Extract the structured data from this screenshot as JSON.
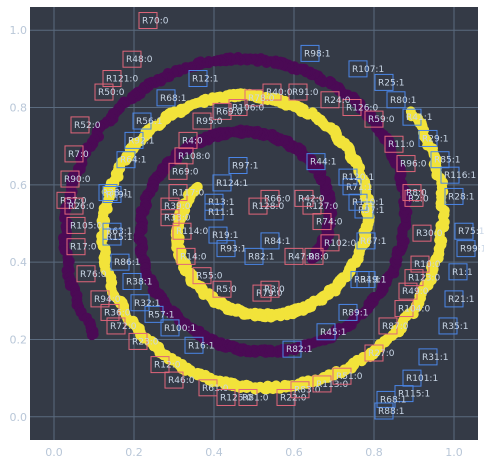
{
  "chart_data": {
    "type": "scatter",
    "title": "",
    "xlabel": "",
    "ylabel": "",
    "xlim": [
      -0.06,
      1.06
    ],
    "ylim": [
      -0.06,
      1.06
    ],
    "xticks": [
      0.0,
      0.2,
      0.4,
      0.6,
      0.8,
      1.0
    ],
    "yticks": [
      0.0,
      0.2,
      0.4,
      0.6,
      0.8,
      1.0
    ],
    "xtick_labels": [
      "0.0",
      "0.2",
      "0.4",
      "0.6",
      "0.8",
      "1.0"
    ],
    "ytick_labels": [
      "0.0",
      "0.2",
      "0.4",
      "0.6",
      "0.8",
      "1.0"
    ],
    "grid": true,
    "legend": false,
    "colors": {
      "background": "#343a46",
      "class0": "#4b0a55",
      "class1": "#f2e33a",
      "box_class0": "#e0657a",
      "box_class1": "#4a86e8"
    },
    "series": [
      {
        "marker_class": 0,
        "color": "#4b0a55",
        "spiral": {
          "t_start": 0.35,
          "t_end": 1.0,
          "phase": 0.0,
          "center": [
            0.5,
            0.5
          ],
          "max_radius": 0.49,
          "turns": 2.6
        }
      },
      {
        "marker_class": 1,
        "color": "#f2e33a",
        "spiral": {
          "t_start": 0.35,
          "t_end": 1.0,
          "phase": 3.14159,
          "center": [
            0.5,
            0.5
          ],
          "max_radius": 0.49,
          "turns": 2.6
        }
      }
    ],
    "annotations": [
      {
        "text": "R70:0",
        "x": 0.235,
        "y": 1.025,
        "cls": 0
      },
      {
        "text": "R48:0",
        "x": 0.195,
        "y": 0.925,
        "cls": 0
      },
      {
        "text": "R121:0",
        "x": 0.145,
        "y": 0.875,
        "cls": 0
      },
      {
        "text": "R50:0",
        "x": 0.125,
        "y": 0.84,
        "cls": 0
      },
      {
        "text": "R52:0",
        "x": 0.065,
        "y": 0.755,
        "cls": 0
      },
      {
        "text": "R7:0",
        "x": 0.05,
        "y": 0.68,
        "cls": 0
      },
      {
        "text": "R90:0",
        "x": 0.04,
        "y": 0.615,
        "cls": 0
      },
      {
        "text": "R57:0",
        "x": 0.03,
        "y": 0.56,
        "cls": 0
      },
      {
        "text": "R26:0",
        "x": 0.05,
        "y": 0.545,
        "cls": 0
      },
      {
        "text": "R105:0",
        "x": 0.055,
        "y": 0.495,
        "cls": 0
      },
      {
        "text": "R17:0",
        "x": 0.055,
        "y": 0.44,
        "cls": 0
      },
      {
        "text": "R76:0",
        "x": 0.08,
        "y": 0.37,
        "cls": 0
      },
      {
        "text": "R94:0",
        "x": 0.115,
        "y": 0.305,
        "cls": 0
      },
      {
        "text": "R36:0",
        "x": 0.14,
        "y": 0.27,
        "cls": 0
      },
      {
        "text": "R72:0",
        "x": 0.155,
        "y": 0.235,
        "cls": 0
      },
      {
        "text": "R23:0",
        "x": 0.21,
        "y": 0.195,
        "cls": 0
      },
      {
        "text": "R12:0",
        "x": 0.265,
        "y": 0.135,
        "cls": 0
      },
      {
        "text": "R46:0",
        "x": 0.3,
        "y": 0.095,
        "cls": 0
      },
      {
        "text": "R61:0",
        "x": 0.385,
        "y": 0.075,
        "cls": 0
      },
      {
        "text": "R125:0",
        "x": 0.43,
        "y": 0.05,
        "cls": 0
      },
      {
        "text": "R81:0",
        "x": 0.485,
        "y": 0.05,
        "cls": 0
      },
      {
        "text": "R22:0",
        "x": 0.58,
        "y": 0.05,
        "cls": 0
      },
      {
        "text": "R83:0",
        "x": 0.615,
        "y": 0.07,
        "cls": 0
      },
      {
        "text": "R113:0",
        "x": 0.67,
        "y": 0.085,
        "cls": 0
      },
      {
        "text": "R51:0",
        "x": 0.72,
        "y": 0.105,
        "cls": 0
      },
      {
        "text": "R27:0",
        "x": 0.8,
        "y": 0.165,
        "cls": 0
      },
      {
        "text": "R87:0",
        "x": 0.835,
        "y": 0.235,
        "cls": 0
      },
      {
        "text": "R104:0",
        "x": 0.875,
        "y": 0.28,
        "cls": 0
      },
      {
        "text": "R49:0",
        "x": 0.885,
        "y": 0.325,
        "cls": 0
      },
      {
        "text": "R123:0",
        "x": 0.9,
        "y": 0.36,
        "cls": 0
      },
      {
        "text": "R10:0",
        "x": 0.915,
        "y": 0.395,
        "cls": 0
      },
      {
        "text": "R30:0",
        "x": 0.92,
        "y": 0.475,
        "cls": 0
      },
      {
        "text": "R2:0",
        "x": 0.9,
        "y": 0.565,
        "cls": 0
      },
      {
        "text": "R8:0",
        "x": 0.895,
        "y": 0.58,
        "cls": 0
      },
      {
        "text": "R96:0",
        "x": 0.88,
        "y": 0.655,
        "cls": 0
      },
      {
        "text": "R11:0",
        "x": 0.85,
        "y": 0.705,
        "cls": 0
      },
      {
        "text": "R59:0",
        "x": 0.8,
        "y": 0.77,
        "cls": 0
      },
      {
        "text": "R126:0",
        "x": 0.745,
        "y": 0.8,
        "cls": 0
      },
      {
        "text": "R24:0",
        "x": 0.69,
        "y": 0.82,
        "cls": 0
      },
      {
        "text": "R91:0",
        "x": 0.61,
        "y": 0.84,
        "cls": 0
      },
      {
        "text": "R40:0",
        "x": 0.545,
        "y": 0.84,
        "cls": 0
      },
      {
        "text": "R78:0",
        "x": 0.5,
        "y": 0.825,
        "cls": 0
      },
      {
        "text": "R106:0",
        "x": 0.46,
        "y": 0.8,
        "cls": 0
      },
      {
        "text": "R69:0",
        "x": 0.42,
        "y": 0.79,
        "cls": 0
      },
      {
        "text": "R95:0",
        "x": 0.37,
        "y": 0.765,
        "cls": 0
      },
      {
        "text": "R4:0",
        "x": 0.335,
        "y": 0.715,
        "cls": 0
      },
      {
        "text": "R108:0",
        "x": 0.325,
        "y": 0.675,
        "cls": 0
      },
      {
        "text": "R69:0",
        "x": 0.31,
        "y": 0.635,
        "cls": 0
      },
      {
        "text": "R117:0",
        "x": 0.31,
        "y": 0.58,
        "cls": 0
      },
      {
        "text": "R39:0",
        "x": 0.29,
        "y": 0.545,
        "cls": 0
      },
      {
        "text": "R33:0",
        "x": 0.29,
        "y": 0.515,
        "cls": 0
      },
      {
        "text": "R114:0",
        "x": 0.32,
        "y": 0.48,
        "cls": 0
      },
      {
        "text": "R14:0",
        "x": 0.33,
        "y": 0.415,
        "cls": 0
      },
      {
        "text": "R55:0",
        "x": 0.37,
        "y": 0.365,
        "cls": 0
      },
      {
        "text": "R5:0",
        "x": 0.42,
        "y": 0.33,
        "cls": 0
      },
      {
        "text": "R79:0",
        "x": 0.52,
        "y": 0.32,
        "cls": 0
      },
      {
        "text": "R3:0",
        "x": 0.54,
        "y": 0.33,
        "cls": 0
      },
      {
        "text": "R47:0",
        "x": 0.6,
        "y": 0.415,
        "cls": 0
      },
      {
        "text": "R8:0",
        "x": 0.65,
        "y": 0.415,
        "cls": 0
      },
      {
        "text": "R102:0",
        "x": 0.69,
        "y": 0.45,
        "cls": 0
      },
      {
        "text": "R74:0",
        "x": 0.67,
        "y": 0.505,
        "cls": 0
      },
      {
        "text": "R127:0",
        "x": 0.645,
        "y": 0.545,
        "cls": 0
      },
      {
        "text": "R42:0",
        "x": 0.625,
        "y": 0.565,
        "cls": 0
      },
      {
        "text": "R66:0",
        "x": 0.54,
        "y": 0.565,
        "cls": 0
      },
      {
        "text": "R128:0",
        "x": 0.51,
        "y": 0.545,
        "cls": 0
      },
      {
        "text": "R38:1",
        "x": 0.135,
        "y": 0.58,
        "cls": 1
      },
      {
        "text": "R19:1",
        "x": 0.145,
        "y": 0.575,
        "cls": 1
      },
      {
        "text": "R63:1",
        "x": 0.145,
        "y": 0.48,
        "cls": 1
      },
      {
        "text": "R15:1",
        "x": 0.145,
        "y": 0.465,
        "cls": 1
      },
      {
        "text": "R86:1",
        "x": 0.165,
        "y": 0.4,
        "cls": 1
      },
      {
        "text": "R38:1",
        "x": 0.195,
        "y": 0.35,
        "cls": 1
      },
      {
        "text": "R32:1",
        "x": 0.215,
        "y": 0.295,
        "cls": 1
      },
      {
        "text": "R57:1",
        "x": 0.25,
        "y": 0.265,
        "cls": 1
      },
      {
        "text": "R100:1",
        "x": 0.29,
        "y": 0.23,
        "cls": 1
      },
      {
        "text": "R16:1",
        "x": 0.35,
        "y": 0.185,
        "cls": 1
      },
      {
        "text": "R56:1",
        "x": 0.22,
        "y": 0.765,
        "cls": 1
      },
      {
        "text": "R92:1",
        "x": 0.2,
        "y": 0.715,
        "cls": 1
      },
      {
        "text": "R64:1",
        "x": 0.18,
        "y": 0.665,
        "cls": 1
      },
      {
        "text": "R12:1",
        "x": 0.36,
        "y": 0.875,
        "cls": 1
      },
      {
        "text": "R68:1",
        "x": 0.28,
        "y": 0.825,
        "cls": 1
      },
      {
        "text": "R98:1",
        "x": 0.64,
        "y": 0.94,
        "cls": 1
      },
      {
        "text": "R107:1",
        "x": 0.76,
        "y": 0.9,
        "cls": 1
      },
      {
        "text": "R25:1",
        "x": 0.825,
        "y": 0.865,
        "cls": 1
      },
      {
        "text": "R80:1",
        "x": 0.855,
        "y": 0.82,
        "cls": 1
      },
      {
        "text": "R41:1",
        "x": 0.895,
        "y": 0.775,
        "cls": 1
      },
      {
        "text": "R29:1",
        "x": 0.935,
        "y": 0.72,
        "cls": 1
      },
      {
        "text": "R85:1",
        "x": 0.965,
        "y": 0.665,
        "cls": 1
      },
      {
        "text": "R116:1",
        "x": 0.99,
        "y": 0.625,
        "cls": 1
      },
      {
        "text": "R28:1",
        "x": 1.0,
        "y": 0.57,
        "cls": 1
      },
      {
        "text": "R75:1",
        "x": 1.025,
        "y": 0.48,
        "cls": 1
      },
      {
        "text": "R99:1",
        "x": 1.03,
        "y": 0.435,
        "cls": 1
      },
      {
        "text": "R1:1",
        "x": 1.01,
        "y": 0.375,
        "cls": 1
      },
      {
        "text": "R21:1",
        "x": 1.0,
        "y": 0.305,
        "cls": 1
      },
      {
        "text": "R35:1",
        "x": 0.985,
        "y": 0.235,
        "cls": 1
      },
      {
        "text": "R31:1",
        "x": 0.935,
        "y": 0.155,
        "cls": 1
      },
      {
        "text": "R101:1",
        "x": 0.895,
        "y": 0.1,
        "cls": 1
      },
      {
        "text": "R115:1",
        "x": 0.875,
        "y": 0.06,
        "cls": 1
      },
      {
        "text": "R68:1",
        "x": 0.83,
        "y": 0.045,
        "cls": 1
      },
      {
        "text": "R88:1",
        "x": 0.825,
        "y": 0.015,
        "cls": 1
      },
      {
        "text": "R89:1",
        "x": 0.735,
        "y": 0.27,
        "cls": 1
      },
      {
        "text": "R45:1",
        "x": 0.68,
        "y": 0.22,
        "cls": 1
      },
      {
        "text": "R19:1",
        "x": 0.78,
        "y": 0.355,
        "cls": 1
      },
      {
        "text": "R34:1",
        "x": 0.765,
        "y": 0.355,
        "cls": 1
      },
      {
        "text": "R67:1",
        "x": 0.78,
        "y": 0.455,
        "cls": 1
      },
      {
        "text": "R97:1",
        "x": 0.775,
        "y": 0.535,
        "cls": 1
      },
      {
        "text": "R110:1",
        "x": 0.76,
        "y": 0.555,
        "cls": 1
      },
      {
        "text": "R71:1",
        "x": 0.745,
        "y": 0.595,
        "cls": 1
      },
      {
        "text": "R120:1",
        "x": 0.735,
        "y": 0.62,
        "cls": 1
      },
      {
        "text": "R44:1",
        "x": 0.655,
        "y": 0.66,
        "cls": 1
      },
      {
        "text": "R97:1",
        "x": 0.46,
        "y": 0.65,
        "cls": 1
      },
      {
        "text": "R124:1",
        "x": 0.42,
        "y": 0.605,
        "cls": 1
      },
      {
        "text": "R13:1",
        "x": 0.4,
        "y": 0.555,
        "cls": 1
      },
      {
        "text": "R11:1",
        "x": 0.4,
        "y": 0.53,
        "cls": 1
      },
      {
        "text": "R19:1",
        "x": 0.41,
        "y": 0.47,
        "cls": 1
      },
      {
        "text": "R93:1",
        "x": 0.43,
        "y": 0.435,
        "cls": 1
      },
      {
        "text": "R82:1",
        "x": 0.5,
        "y": 0.415,
        "cls": 1
      },
      {
        "text": "R84:1",
        "x": 0.54,
        "y": 0.455,
        "cls": 1
      },
      {
        "text": "R82:1",
        "x": 0.595,
        "y": 0.175,
        "cls": 1
      }
    ]
  }
}
